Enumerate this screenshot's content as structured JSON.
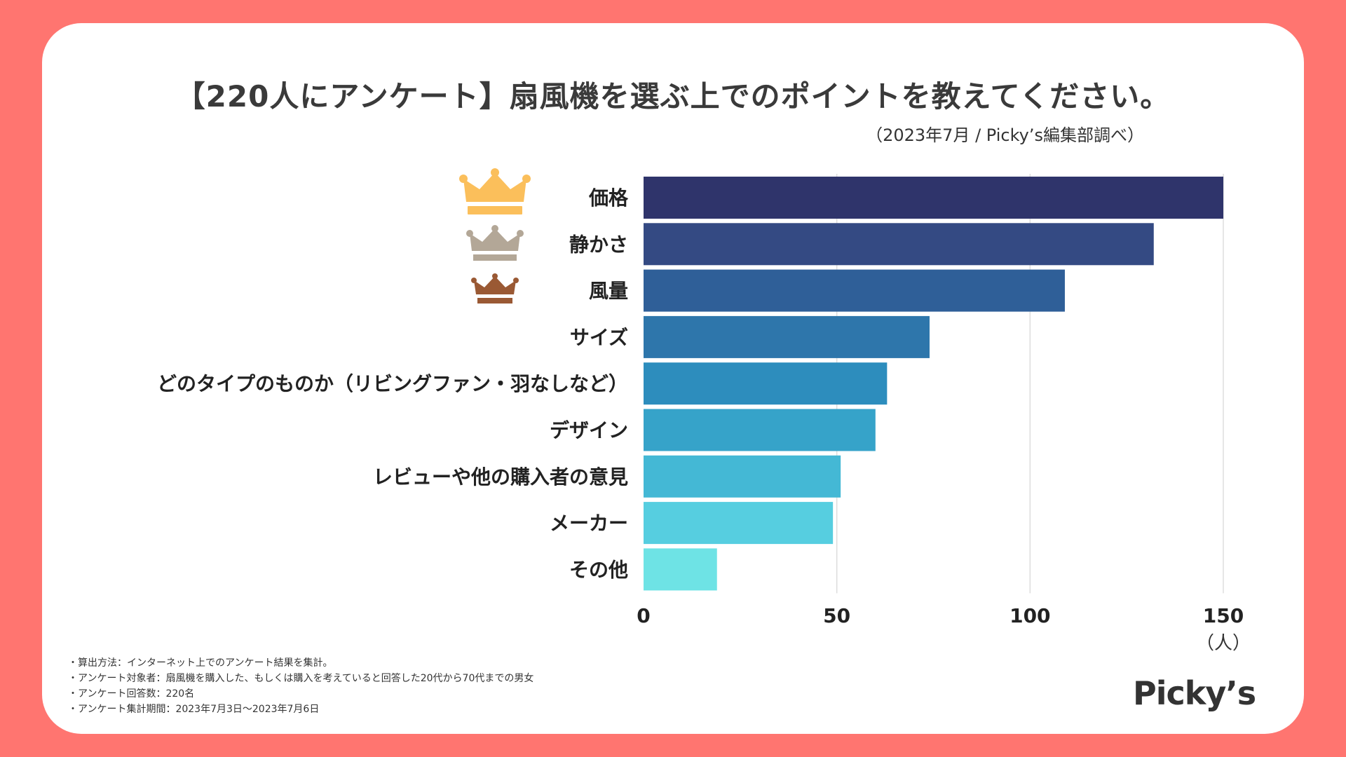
{
  "title": "【220人にアンケート】扇風機を選ぶ上でのポイントを教えてください。",
  "subtitle": "（2023年7月 / Picky’s編集部調べ）",
  "logo": "Picky’s",
  "colors": {
    "background": "#ff7570",
    "card": "#ffffff",
    "gold": "#fbbf5b",
    "silver": "#b3a797",
    "bronze": "#9a5934"
  },
  "notes": [
    "・算出方法：インターネット上でのアンケート結果を集計。",
    "・アンケート対象者：扇風機を購入した、もしくは購入を考えていると回答した20代から70代までの男女",
    "・アンケート回答数：220名",
    "・アンケート集計期間：2023年7月3日〜2023年7月6日"
  ],
  "chart_data": {
    "type": "bar",
    "orientation": "horizontal",
    "categories": [
      "価格",
      "静かさ",
      "風量",
      "サイズ",
      "どのタイプのものか（リビングファン・羽なしなど）",
      "デザイン",
      "レビューや他の購入者の意見",
      "メーカー",
      "その他"
    ],
    "values": [
      150,
      132,
      109,
      74,
      63,
      60,
      51,
      49,
      19
    ],
    "bar_colors": [
      "#2f346b",
      "#344a83",
      "#2f5f98",
      "#2e76ab",
      "#2d8dbd",
      "#36a3c9",
      "#44b8d5",
      "#56cee0",
      "#6ee3e5"
    ],
    "xlim": [
      0,
      150
    ],
    "xticks": [
      0,
      50,
      100,
      150
    ],
    "xunit": "（人）",
    "grid": true,
    "ranks": [
      {
        "rank": 1,
        "icon": "gold-crown-icon"
      },
      {
        "rank": 2,
        "icon": "silver-crown-icon"
      },
      {
        "rank": 3,
        "icon": "bronze-crown-icon"
      }
    ]
  }
}
